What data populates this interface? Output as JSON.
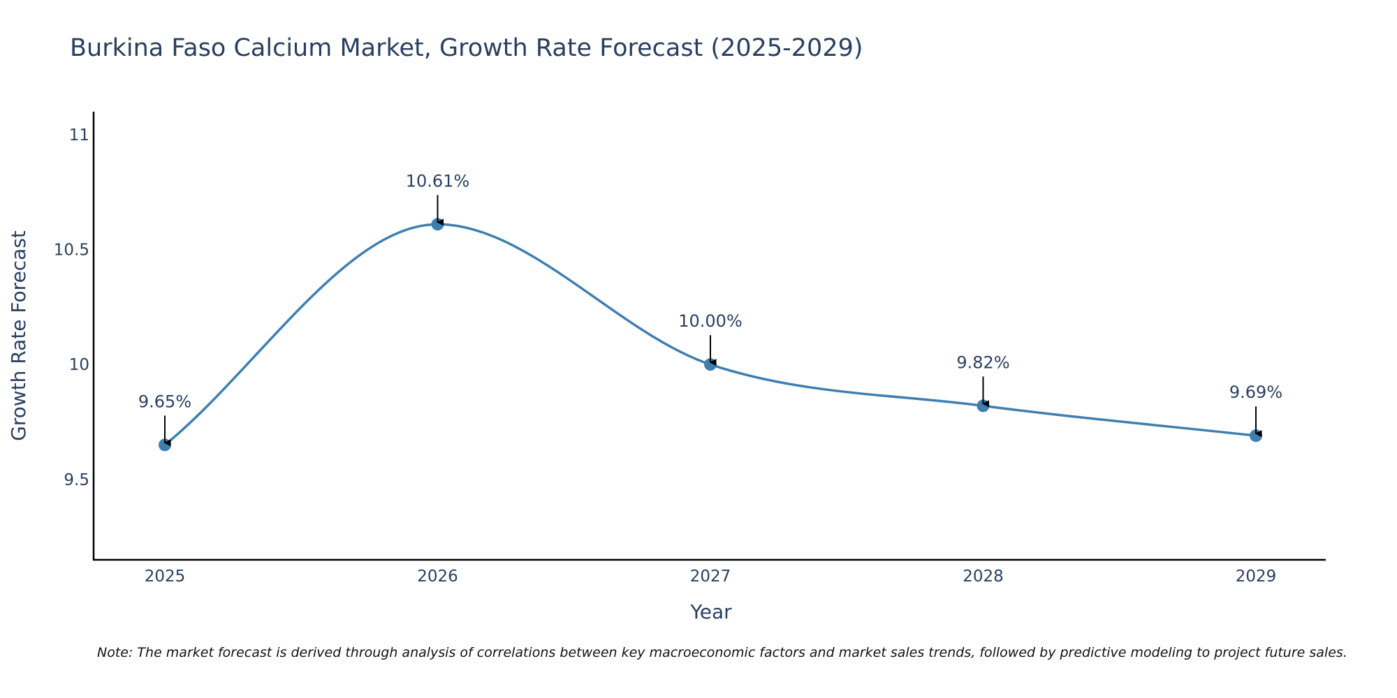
{
  "chart_data": {
    "type": "line",
    "title": "Burkina Faso Calcium Market, Growth Rate Forecast (2025-2029)",
    "xlabel": "Year",
    "ylabel": "Growth Rate Forecast",
    "categories": [
      "2025",
      "2026",
      "2027",
      "2028",
      "2029"
    ],
    "series": [
      {
        "name": "Growth Rate Forecast",
        "values": [
          9.65,
          10.61,
          10.0,
          9.82,
          9.69
        ],
        "color": "#3f7fb0"
      }
    ],
    "data_labels": [
      "9.65%",
      "10.61%",
      "10.00%",
      "9.82%",
      "9.69%"
    ],
    "ylim": [
      9.15,
      11.1
    ],
    "yticks": [
      9.5,
      10,
      10.5,
      11
    ],
    "ytick_labels": [
      "9.5",
      "10",
      "10.5",
      "11"
    ],
    "line_shape": "spline",
    "grid": false,
    "note": "Note: The market forecast is derived through analysis of correlations between key macroeconomic factors and market sales trends, followed by predictive modeling to project future sales."
  },
  "colors": {
    "line": "#3f7fb0",
    "marker": "#3f7fb0",
    "text": "#2a3f5f",
    "axis": "#000000",
    "arrow": "#000000"
  }
}
